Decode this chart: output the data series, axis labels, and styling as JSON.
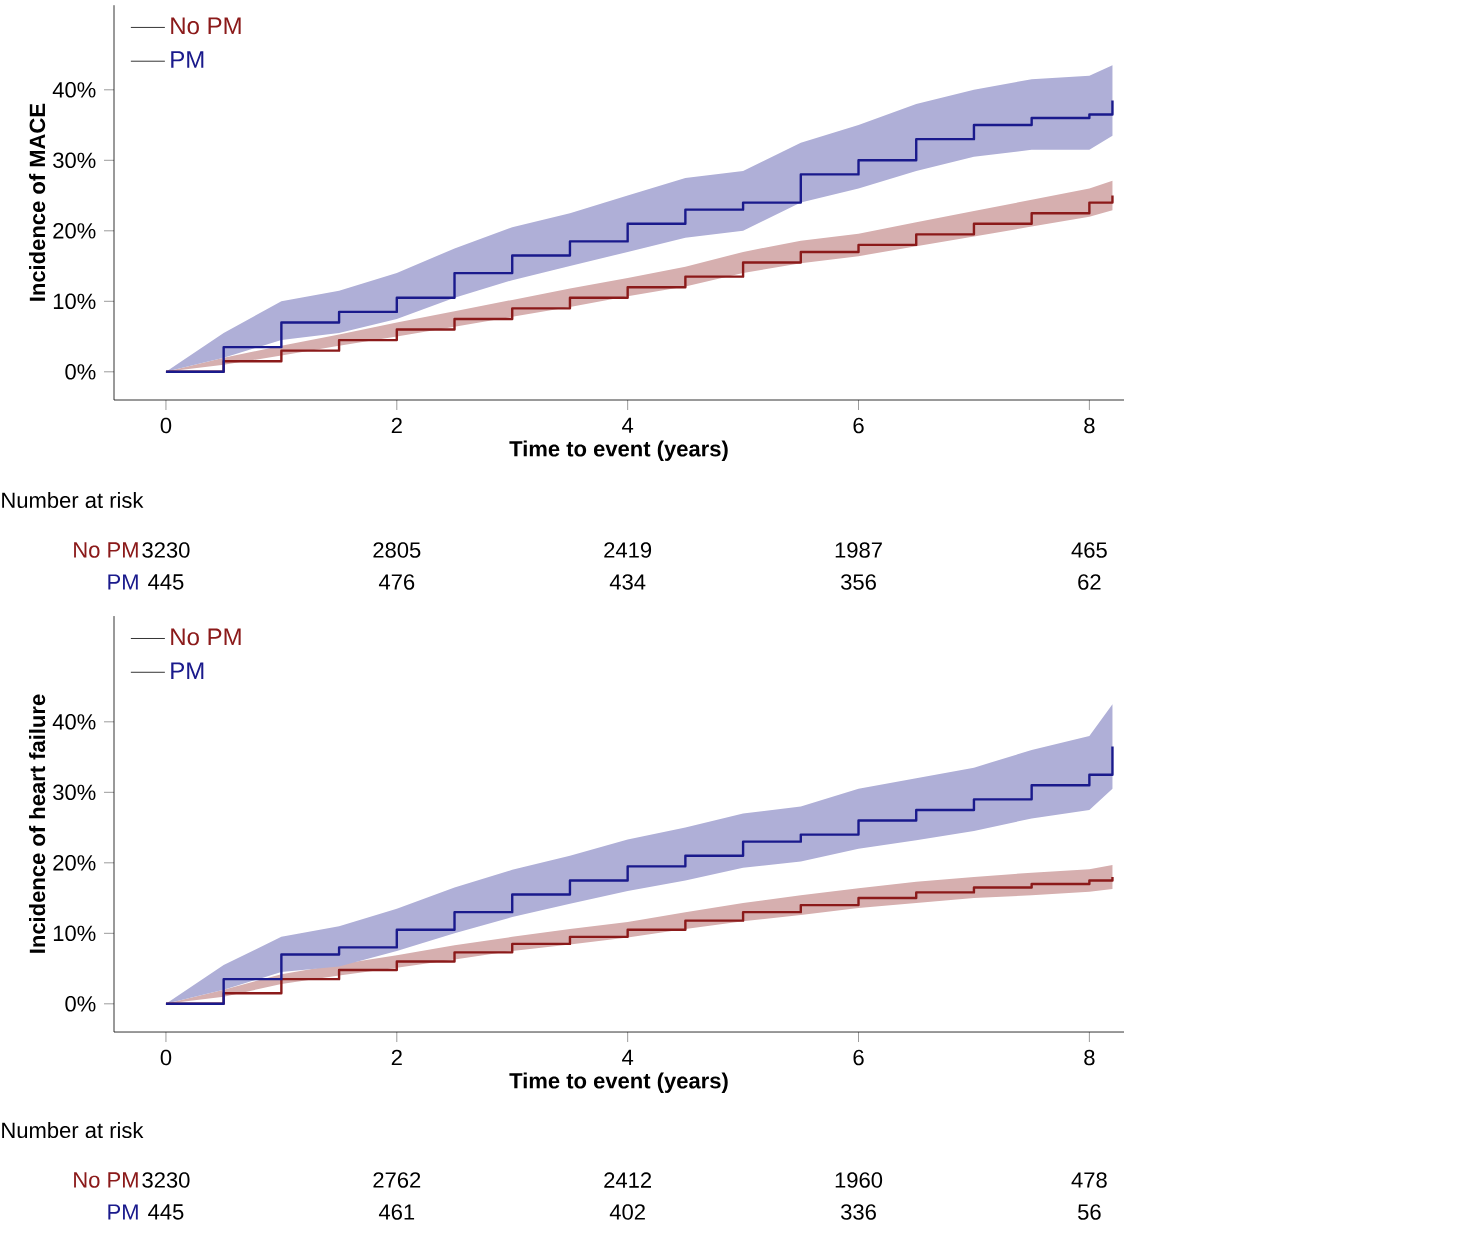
{
  "chart_data": [
    {
      "type": "step",
      "xlabel": "Time to event (years)",
      "ylabel": "Incidence of MACE",
      "xlim": [
        -0.45,
        8.3
      ],
      "ylim": [
        -4,
        52
      ],
      "xticks": [
        0,
        2,
        4,
        6,
        8
      ],
      "yticks": [
        {
          "value": 0,
          "label": "0%"
        },
        {
          "value": 10,
          "label": "10%"
        },
        {
          "value": 20,
          "label": "20%"
        },
        {
          "value": 30,
          "label": "30%"
        },
        {
          "value": 40,
          "label": "40%"
        }
      ],
      "legend": "top left",
      "series": [
        {
          "name": "No PM",
          "color": "#8b1a1a",
          "x": [
            0,
            0.5,
            1,
            1.5,
            2,
            2.5,
            3,
            3.5,
            4,
            4.5,
            5,
            5.5,
            6,
            6.5,
            7,
            7.5,
            8,
            8.2
          ],
          "values": [
            0,
            1.5,
            3,
            4.5,
            6,
            7.5,
            9,
            10.5,
            12,
            13.5,
            15.5,
            17,
            18,
            19.5,
            21,
            22.5,
            24,
            25
          ],
          "lower": [
            0,
            1,
            2.3,
            3.7,
            5,
            6.4,
            7.8,
            9.2,
            10.7,
            12.1,
            14,
            15.4,
            16.4,
            17.8,
            19.2,
            20.6,
            22,
            22.9
          ],
          "upper": [
            0,
            2,
            3.7,
            5.3,
            7,
            8.6,
            10.2,
            11.8,
            13.3,
            14.9,
            17,
            18.6,
            19.6,
            21.2,
            22.8,
            24.4,
            26,
            27.1
          ]
        },
        {
          "name": "PM",
          "color": "#1a1a8c",
          "x": [
            0,
            0.5,
            1,
            1.5,
            2,
            2.5,
            3,
            3.5,
            4,
            4.5,
            5,
            5.5,
            6,
            6.5,
            7,
            7.5,
            8,
            8.2
          ],
          "values": [
            0,
            3.5,
            7,
            8.5,
            10.5,
            14,
            16.5,
            18.5,
            21,
            23,
            24,
            28,
            30,
            33,
            35,
            36,
            36.5,
            38.5
          ],
          "lower": [
            0,
            2,
            4.5,
            5.5,
            7.5,
            10.5,
            13,
            15,
            17,
            19,
            20,
            24,
            26,
            28.5,
            30.5,
            31.5,
            31.5,
            33.5
          ],
          "upper": [
            0,
            5.5,
            10,
            11.5,
            14,
            17.5,
            20.5,
            22.5,
            25,
            27.5,
            28.5,
            32.5,
            35,
            38,
            40,
            41.5,
            42,
            43.5
          ]
        }
      ]
    },
    {
      "type": "other",
      "title": "Number at risk",
      "annotations": [
        "No PM",
        "3230",
        "2805",
        "2419",
        "1987",
        "465",
        "PM",
        "445",
        "476",
        "434",
        "356",
        "62"
      ]
    },
    {
      "type": "step",
      "xlabel": "Time to event (years)",
      "ylabel": "Incidence of heart failure",
      "xlim": [
        -0.45,
        8.3
      ],
      "ylim": [
        -4,
        55
      ],
      "xticks": [
        0,
        2,
        4,
        6,
        8
      ],
      "yticks": [
        {
          "value": 0,
          "label": "0%"
        },
        {
          "value": 10,
          "label": "10%"
        },
        {
          "value": 20,
          "label": "20%"
        },
        {
          "value": 30,
          "label": "30%"
        },
        {
          "value": 40,
          "label": "40%"
        }
      ],
      "legend": "top left",
      "series": [
        {
          "name": "No PM",
          "color": "#8b1a1a",
          "x": [
            0,
            0.5,
            1,
            1.5,
            2,
            2.5,
            3,
            3.5,
            4,
            4.5,
            5,
            5.5,
            6,
            6.5,
            7,
            7.5,
            8,
            8.2
          ],
          "values": [
            0,
            1.5,
            3.5,
            4.8,
            6,
            7.3,
            8.5,
            9.5,
            10.5,
            11.8,
            13,
            14,
            15,
            15.8,
            16.5,
            17,
            17.5,
            18
          ],
          "lower": [
            0,
            1,
            2.8,
            4,
            5.1,
            6.3,
            7.5,
            8.4,
            9.4,
            10.6,
            11.7,
            12.6,
            13.6,
            14.3,
            15,
            15.4,
            15.9,
            16.3
          ],
          "upper": [
            0,
            2,
            4.2,
            5.6,
            6.9,
            8.3,
            9.5,
            10.6,
            11.6,
            13,
            14.3,
            15.4,
            16.4,
            17.3,
            18,
            18.6,
            19.1,
            19.7
          ]
        },
        {
          "name": "PM",
          "color": "#1a1a8c",
          "x": [
            0,
            0.5,
            1,
            1.5,
            2,
            2.5,
            3,
            3.5,
            4,
            4.5,
            5,
            5.5,
            6,
            6.5,
            7,
            7.5,
            8,
            8.2
          ],
          "values": [
            0,
            3.5,
            7,
            8,
            10.5,
            13,
            15.5,
            17.5,
            19.5,
            21,
            23,
            24,
            26,
            27.5,
            29,
            31,
            32.5,
            36.5
          ],
          "lower": [
            0,
            2,
            4.5,
            5.3,
            7.5,
            10,
            12.3,
            14.2,
            16,
            17.5,
            19.3,
            20.2,
            22,
            23.2,
            24.5,
            26.3,
            27.5,
            30.5
          ],
          "upper": [
            0,
            5.5,
            9.5,
            11,
            13.5,
            16.5,
            19,
            21,
            23.3,
            25,
            27,
            28,
            30.5,
            32,
            33.5,
            36,
            38,
            42.5
          ]
        }
      ]
    },
    {
      "type": "other",
      "title": "Number at risk",
      "annotations": [
        "No PM",
        "3230",
        "2762",
        "2412",
        "1960",
        "478",
        "PM",
        "445",
        "461",
        "402",
        "336",
        "56"
      ]
    }
  ]
}
